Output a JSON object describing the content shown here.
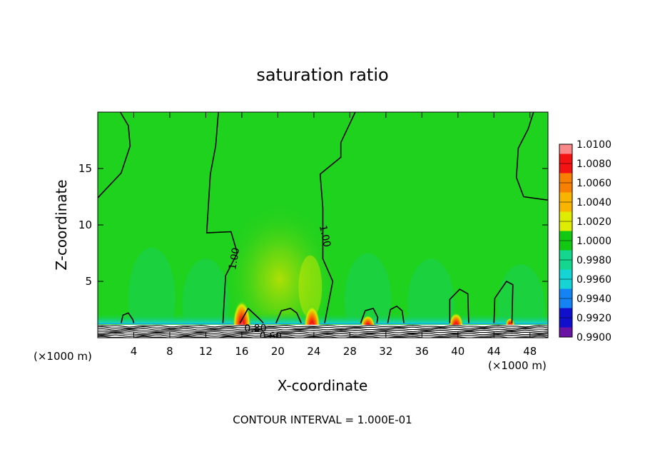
{
  "chart_data": {
    "type": "heatmap",
    "title": "saturation ratio",
    "xlabel": "X-coordinate",
    "ylabel": "Z-coordinate",
    "x_unit_left": "(×1000 m)",
    "x_unit_right": "(×1000 m)",
    "xlim": [
      0,
      50
    ],
    "ylim": [
      0,
      20
    ],
    "x_ticks": [
      4,
      8,
      12,
      16,
      20,
      24,
      28,
      32,
      36,
      40,
      44,
      48
    ],
    "y_ticks": [
      5,
      10,
      15
    ],
    "footer": "CONTOUR INTERVAL = 1.000E-01",
    "colorbar": {
      "levels": [
        "1.0100",
        "1.0080",
        "1.0060",
        "1.0040",
        "1.0020",
        "1.0000",
        "0.9980",
        "0.9960",
        "0.9940",
        "0.9920",
        "0.9900"
      ],
      "colors": [
        "#fa8a8a",
        "#f31313",
        "#f88000",
        "#f8b400",
        "#ddec00",
        "#12c812",
        "#14d68e",
        "#14d4d4",
        "#1484f4",
        "#1010cc",
        "#6a14a4"
      ]
    },
    "background_color": "#1ed21e",
    "contour_labels": [
      {
        "text": "1.00",
        "x": 15.2,
        "z": 7.0,
        "angle": -80
      },
      {
        "text": "1.00",
        "x": 25.2,
        "z": 9.0,
        "angle": 78
      },
      {
        "text": "0.80",
        "x": 17.5,
        "z": 0.8,
        "angle": 0
      },
      {
        "text": "0.60",
        "x": 19.2,
        "z": 0.1,
        "angle": 0
      }
    ],
    "contours_1_00": [
      [
        [
          2.5,
          20
        ],
        [
          3.4,
          18.8
        ],
        [
          3.6,
          17
        ],
        [
          2.6,
          14.6
        ],
        [
          0,
          12.4
        ]
      ],
      [
        [
          13.9,
          1.3
        ],
        [
          14.2,
          5.5
        ],
        [
          15.5,
          7.5
        ],
        [
          14.8,
          9.4
        ],
        [
          12.1,
          9.3
        ],
        [
          12.5,
          14.5
        ],
        [
          13.1,
          17
        ],
        [
          13.4,
          20
        ]
      ],
      [
        [
          25.2,
          1.3
        ],
        [
          26.1,
          5.0
        ],
        [
          25.0,
          7.0
        ],
        [
          25.0,
          11.5
        ],
        [
          24.7,
          14.5
        ],
        [
          27.0,
          16.0
        ],
        [
          27.0,
          17.3
        ],
        [
          28.6,
          20
        ]
      ],
      [
        [
          48.4,
          20
        ],
        [
          47.8,
          18.5
        ],
        [
          46.7,
          16.8
        ],
        [
          46.5,
          14.2
        ],
        [
          47.3,
          12.5
        ],
        [
          50,
          12.2
        ]
      ],
      [
        [
          2.6,
          1.3
        ],
        [
          2.8,
          2.0
        ],
        [
          3.4,
          2.2
        ],
        [
          3.9,
          1.6
        ],
        [
          4.0,
          1.3
        ]
      ],
      [
        [
          15.8,
          1.3
        ],
        [
          16.7,
          2.6
        ],
        [
          17.8,
          1.8
        ],
        [
          18.4,
          1.3
        ]
      ],
      [
        [
          19.8,
          1.3
        ],
        [
          20.4,
          2.4
        ],
        [
          21.4,
          2.6
        ],
        [
          22.1,
          2.2
        ],
        [
          22.6,
          1.3
        ]
      ],
      [
        [
          29.2,
          1.3
        ],
        [
          29.7,
          2.4
        ],
        [
          30.6,
          2.6
        ],
        [
          31.1,
          1.8
        ],
        [
          31.0,
          1.3
        ]
      ],
      [
        [
          32.2,
          1.3
        ],
        [
          32.5,
          2.5
        ],
        [
          33.2,
          2.8
        ],
        [
          33.8,
          2.4
        ],
        [
          34.0,
          1.3
        ]
      ],
      [
        [
          39.1,
          1.3
        ],
        [
          39.1,
          3.4
        ],
        [
          40.2,
          4.3
        ],
        [
          41.1,
          3.9
        ],
        [
          41.2,
          1.3
        ]
      ],
      [
        [
          44.0,
          1.3
        ],
        [
          44.1,
          3.5
        ],
        [
          45.4,
          5.0
        ],
        [
          46.1,
          4.7
        ],
        [
          46.0,
          1.3
        ]
      ]
    ],
    "hotspots": [
      {
        "x": 16.0,
        "z": 2.0,
        "rx": 1.0,
        "rz": 2.2
      },
      {
        "x": 23.8,
        "z": 1.7,
        "rx": 0.9,
        "rz": 2.0
      },
      {
        "x": 30.0,
        "z": 1.4,
        "rx": 0.8,
        "rz": 1.0
      },
      {
        "x": 39.8,
        "z": 1.5,
        "rx": 0.8,
        "rz": 1.2
      },
      {
        "x": 45.8,
        "z": 1.4,
        "rx": 0.5,
        "rz": 0.6
      }
    ]
  }
}
